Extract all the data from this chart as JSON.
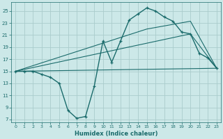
{
  "xlabel": "Humidex (Indice chaleur)",
  "bg_color": "#cce8e8",
  "grid_color": "#aacccc",
  "line_color": "#1a6b6b",
  "line1_x": [
    0,
    1,
    2,
    3,
    4,
    5,
    6,
    7,
    8,
    9,
    10,
    11,
    12,
    13,
    14,
    15,
    16,
    17,
    18,
    19,
    20,
    21,
    22,
    23
  ],
  "line1_y": [
    15,
    15,
    15,
    14.5,
    14,
    13,
    8.5,
    7.2,
    7.5,
    12.5,
    20,
    16.5,
    20,
    23.5,
    24.5,
    25.5,
    25,
    24,
    23.3,
    21.5,
    21.2,
    18,
    17.2,
    15.5
  ],
  "line2_x": [
    0,
    23
  ],
  "line2_y": [
    15,
    15.5
  ],
  "line3_x": [
    0,
    20,
    23
  ],
  "line3_y": [
    15,
    21.2,
    15.5
  ],
  "line4_x": [
    0,
    15,
    20,
    23
  ],
  "line4_y": [
    15,
    22.0,
    23.3,
    15.5
  ],
  "xlim": [
    -0.5,
    23.5
  ],
  "ylim": [
    6.5,
    26.5
  ],
  "xticks": [
    0,
    1,
    2,
    3,
    4,
    5,
    6,
    7,
    8,
    9,
    10,
    11,
    12,
    13,
    14,
    15,
    16,
    17,
    18,
    19,
    20,
    21,
    22,
    23
  ],
  "yticks": [
    7,
    9,
    11,
    13,
    15,
    17,
    19,
    21,
    23,
    25
  ]
}
